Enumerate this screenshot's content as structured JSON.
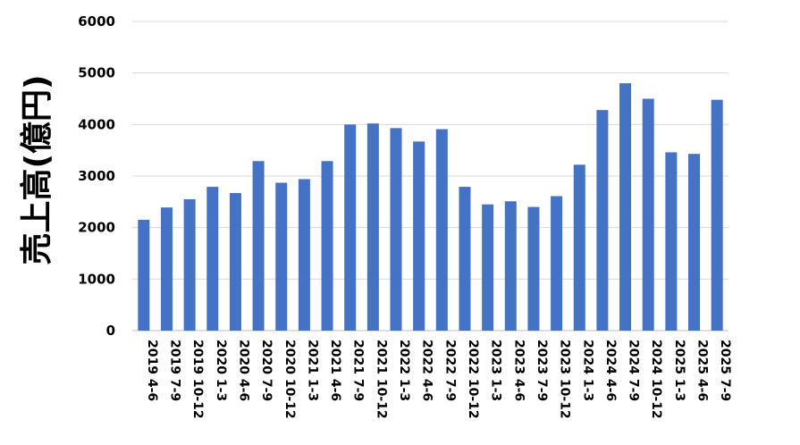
{
  "chart_data": {
    "type": "bar",
    "title": "",
    "xlabel": "",
    "ylabel": "売上高(億円)",
    "ylim": [
      0,
      6000
    ],
    "yticks": [
      0,
      1000,
      2000,
      3000,
      4000,
      5000,
      6000
    ],
    "grid": true,
    "legend": "none",
    "bar_color": "#4472C4",
    "categories": [
      "2019 4-6",
      "2019 7-9",
      "2019 10-12",
      "2020 1-3",
      "2020 4-6",
      "2020 7-9",
      "2020 10-12",
      "2021 1-3",
      "2021 4-6",
      "2021 7-9",
      "2021 10-12",
      "2022 1-3",
      "2022 4-6",
      "2022 7-9",
      "2022 10-12",
      "2023 1-3",
      "2023 4-6",
      "2023 7-9",
      "2023 10-12",
      "2024 1-3",
      "2024 4-6",
      "2024 7-9",
      "2024 10-12",
      "2025 1-3",
      "2025 4-6",
      "2025 7-9"
    ],
    "values": [
      2150,
      2390,
      2550,
      2790,
      2670,
      3290,
      2870,
      2940,
      3290,
      4000,
      4020,
      3930,
      3670,
      3910,
      2790,
      2450,
      2510,
      2400,
      2610,
      3220,
      4280,
      4800,
      4500,
      3460,
      3430,
      4480
    ]
  }
}
